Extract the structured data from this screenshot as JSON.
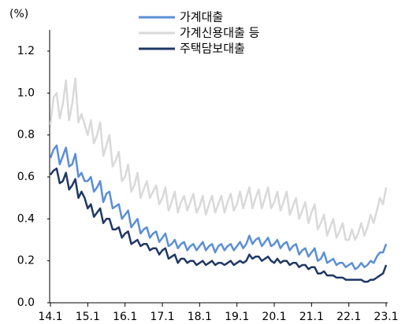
{
  "chart_data": {
    "type": "line",
    "y_label": "(%)",
    "categories": [
      "14.1",
      null,
      null,
      null,
      null,
      null,
      null,
      null,
      null,
      null,
      null,
      null,
      "15.1",
      null,
      null,
      null,
      null,
      null,
      null,
      null,
      null,
      null,
      null,
      null,
      "16.1",
      null,
      null,
      null,
      null,
      null,
      null,
      null,
      null,
      null,
      null,
      null,
      "17.1",
      null,
      null,
      null,
      null,
      null,
      null,
      null,
      null,
      null,
      null,
      null,
      "18.1",
      null,
      null,
      null,
      null,
      null,
      null,
      null,
      null,
      null,
      null,
      null,
      "19.1",
      null,
      null,
      null,
      null,
      null,
      null,
      null,
      null,
      null,
      null,
      null,
      "20.1",
      null,
      null,
      null,
      null,
      null,
      null,
      null,
      null,
      null,
      null,
      null,
      "21.1",
      null,
      null,
      null,
      null,
      null,
      null,
      null,
      null,
      null,
      null,
      null,
      "22.1",
      null,
      null,
      null,
      null,
      null,
      null,
      null,
      null,
      null,
      null,
      null,
      "23.1"
    ],
    "series": [
      {
        "name": "가계대출",
        "color": "#5b8fd6",
        "values": [
          0.69,
          0.73,
          0.75,
          0.66,
          0.7,
          0.74,
          0.65,
          0.66,
          0.71,
          0.6,
          0.62,
          0.58,
          0.58,
          0.6,
          0.53,
          0.55,
          0.58,
          0.48,
          0.52,
          0.53,
          0.45,
          0.46,
          0.47,
          0.4,
          0.42,
          0.44,
          0.36,
          0.38,
          0.4,
          0.33,
          0.35,
          0.36,
          0.31,
          0.33,
          0.34,
          0.29,
          0.31,
          0.33,
          0.27,
          0.28,
          0.3,
          0.26,
          0.28,
          0.29,
          0.25,
          0.27,
          0.28,
          0.25,
          0.27,
          0.29,
          0.25,
          0.27,
          0.28,
          0.24,
          0.27,
          0.28,
          0.25,
          0.27,
          0.28,
          0.25,
          0.27,
          0.29,
          0.26,
          0.28,
          0.32,
          0.28,
          0.3,
          0.31,
          0.27,
          0.29,
          0.31,
          0.27,
          0.28,
          0.3,
          0.26,
          0.28,
          0.29,
          0.25,
          0.27,
          0.28,
          0.23,
          0.25,
          0.26,
          0.22,
          0.24,
          0.26,
          0.2,
          0.21,
          0.24,
          0.19,
          0.2,
          0.21,
          0.18,
          0.19,
          0.19,
          0.17,
          0.18,
          0.19,
          0.16,
          0.17,
          0.19,
          0.17,
          0.18,
          0.2,
          0.19,
          0.22,
          0.24,
          0.24,
          0.28
        ]
      },
      {
        "name": "가계신용대출 등",
        "color": "#d9d9d9",
        "values": [
          0.85,
          0.98,
          1.0,
          0.88,
          0.95,
          1.06,
          0.87,
          0.95,
          1.07,
          0.86,
          0.9,
          0.85,
          0.8,
          0.87,
          0.76,
          0.8,
          0.86,
          0.7,
          0.75,
          0.8,
          0.65,
          0.68,
          0.72,
          0.58,
          0.6,
          0.66,
          0.53,
          0.56,
          0.62,
          0.5,
          0.54,
          0.58,
          0.5,
          0.53,
          0.56,
          0.47,
          0.5,
          0.55,
          0.44,
          0.48,
          0.53,
          0.43,
          0.48,
          0.51,
          0.44,
          0.48,
          0.52,
          0.43,
          0.46,
          0.51,
          0.42,
          0.47,
          0.51,
          0.43,
          0.47,
          0.51,
          0.43,
          0.48,
          0.52,
          0.44,
          0.47,
          0.53,
          0.45,
          0.5,
          0.55,
          0.45,
          0.5,
          0.54,
          0.45,
          0.5,
          0.55,
          0.45,
          0.48,
          0.53,
          0.44,
          0.48,
          0.53,
          0.42,
          0.46,
          0.5,
          0.4,
          0.44,
          0.48,
          0.38,
          0.43,
          0.47,
          0.35,
          0.38,
          0.42,
          0.32,
          0.36,
          0.4,
          0.31,
          0.34,
          0.38,
          0.3,
          0.3,
          0.35,
          0.3,
          0.33,
          0.38,
          0.32,
          0.36,
          0.42,
          0.38,
          0.44,
          0.5,
          0.47,
          0.55
        ]
      },
      {
        "name": "주택담보대출",
        "color": "#1f3864",
        "values": [
          0.61,
          0.63,
          0.64,
          0.57,
          0.58,
          0.62,
          0.54,
          0.56,
          0.59,
          0.5,
          0.53,
          0.5,
          0.45,
          0.47,
          0.41,
          0.43,
          0.45,
          0.38,
          0.4,
          0.4,
          0.35,
          0.35,
          0.36,
          0.31,
          0.33,
          0.34,
          0.28,
          0.29,
          0.3,
          0.27,
          0.28,
          0.28,
          0.25,
          0.26,
          0.26,
          0.23,
          0.25,
          0.26,
          0.21,
          0.22,
          0.23,
          0.19,
          0.21,
          0.21,
          0.19,
          0.2,
          0.2,
          0.18,
          0.19,
          0.2,
          0.18,
          0.19,
          0.2,
          0.18,
          0.19,
          0.19,
          0.18,
          0.19,
          0.2,
          0.18,
          0.19,
          0.2,
          0.19,
          0.2,
          0.23,
          0.21,
          0.22,
          0.22,
          0.2,
          0.21,
          0.22,
          0.2,
          0.19,
          0.21,
          0.19,
          0.2,
          0.2,
          0.18,
          0.19,
          0.19,
          0.17,
          0.18,
          0.18,
          0.16,
          0.17,
          0.17,
          0.14,
          0.14,
          0.15,
          0.13,
          0.13,
          0.13,
          0.12,
          0.12,
          0.12,
          0.11,
          0.11,
          0.11,
          0.11,
          0.11,
          0.11,
          0.1,
          0.1,
          0.11,
          0.11,
          0.12,
          0.13,
          0.14,
          0.18
        ]
      }
    ],
    "ylim": [
      0,
      1.2
    ],
    "yticks": [
      {
        "value": 0,
        "label": "0.0"
      },
      0.2,
      0.4,
      0.6,
      0.8,
      {
        "value": 1,
        "label": "1.0"
      },
      1.2
    ],
    "grid": false
  }
}
